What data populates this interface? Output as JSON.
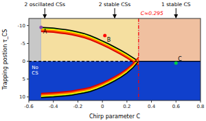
{
  "chart_data": {
    "type": "phase_diagram",
    "xlabel": "Chirp parameter C",
    "ylabel": "Trapping postion τ_CS",
    "xlim": [
      -0.6,
      0.8
    ],
    "ylim": [
      11,
      -12
    ],
    "xticks": [
      -0.6,
      -0.4,
      -0.2,
      0,
      0.2,
      0.4,
      0.6,
      0.8
    ],
    "yticks": [
      -10,
      -5,
      0,
      5,
      10
    ],
    "background_color": "#1040cc",
    "c_left": -0.5,
    "c_critical": 0.295,
    "tau_line": 0,
    "region_colors": [
      "#c8c8c8",
      "#f5dfa0",
      "#f0c0a0"
    ],
    "critical_label": "C≈0.295",
    "critical_color": "red",
    "series": [
      {
        "x": [
          -0.5,
          -0.45,
          -0.4,
          -0.35,
          -0.3,
          -0.25,
          -0.2,
          -0.15,
          -0.1,
          -0.05,
          0.0,
          0.05,
          0.1,
          0.15,
          0.2,
          0.25,
          0.295
        ],
        "values": [
          -9.5,
          -9.4,
          -9.3,
          -9.1,
          -8.9,
          -8.6,
          -8.2,
          -7.8,
          -7.2,
          -6.5,
          -5.7,
          -4.9,
          -4.0,
          -3.1,
          -2.1,
          -1.0,
          0.0
        ],
        "color": "#000000"
      },
      {
        "x": [
          -0.5,
          -0.45,
          -0.4,
          -0.35,
          -0.3,
          -0.25,
          -0.2,
          -0.15,
          -0.1,
          -0.05,
          0.0,
          0.05,
          0.1,
          0.15,
          0.2,
          0.25,
          0.295
        ],
        "values": [
          10.2,
          10.1,
          10.0,
          9.85,
          9.7,
          9.5,
          9.2,
          8.9,
          8.5,
          7.9,
          7.2,
          6.4,
          5.5,
          4.5,
          3.3,
          1.8,
          0.0
        ],
        "color": "#000000"
      }
    ],
    "points": [
      {
        "label": "A",
        "x": -0.5,
        "y": -9.5,
        "color": "#8844aa"
      },
      {
        "label": "B",
        "x": 0.02,
        "y": -7.2,
        "color": "red"
      },
      {
        "label": "C",
        "x": 0.6,
        "y": 0.5,
        "color": "#00cc44"
      }
    ],
    "region_labels": [
      "2 oscillated CSs",
      "2 stable CSs",
      "1 stable CS"
    ],
    "arrow_x": [
      -0.47,
      0.1,
      0.6
    ],
    "annotations": [
      "No\nCS"
    ]
  }
}
